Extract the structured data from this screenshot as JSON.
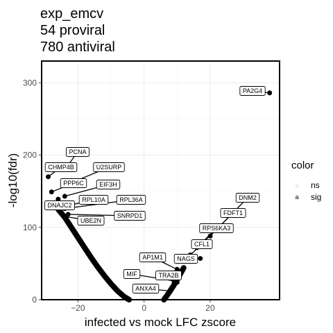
{
  "title_lines": [
    "exp_emcv",
    "54 proviral",
    "780 antiviral"
  ],
  "legend": {
    "title": "color",
    "items": [
      {
        "key": "a",
        "label": "ns",
        "color": "#d9d9d9"
      },
      {
        "key": "a",
        "label": "sig",
        "color": "#000000"
      }
    ]
  },
  "chart_data": {
    "type": "scatter",
    "xlabel": "infected vs mock LFC zscore",
    "ylabel": "-log10(fdr)",
    "xlim": [
      -31,
      41
    ],
    "ylim": [
      0,
      330
    ],
    "xticks": [
      -20,
      0,
      20
    ],
    "yticks": [
      0,
      100,
      200,
      300
    ],
    "grid": true,
    "colors": {
      "sig": "#000000",
      "ns": "#d9d9d9"
    },
    "labeled_points": [
      {
        "label": "PA2G4",
        "x": 38,
        "y": 286
      },
      {
        "label": "PCNA",
        "x": -23,
        "y": 186
      },
      {
        "label": "CHMP4B",
        "x": -29,
        "y": 170
      },
      {
        "label": "U2SURP",
        "x": -24,
        "y": 158
      },
      {
        "label": "PPP6C",
        "x": -28,
        "y": 149
      },
      {
        "label": "EIF3H",
        "x": -24,
        "y": 143
      },
      {
        "label": "DNAJC2",
        "x": -26,
        "y": 139
      },
      {
        "label": "RPL10A",
        "x": -25,
        "y": 128
      },
      {
        "label": "RPL36A",
        "x": -24,
        "y": 126
      },
      {
        "label": "SNRPD1",
        "x": -23,
        "y": 118
      },
      {
        "label": "UBE2N",
        "x": -24,
        "y": 115
      },
      {
        "label": "DNM2",
        "x": 20,
        "y": 88
      },
      {
        "label": "FDFT1",
        "x": 18,
        "y": 80
      },
      {
        "label": "RPS6KA3",
        "x": 16,
        "y": 72
      },
      {
        "label": "CFL1",
        "x": 14,
        "y": 62
      },
      {
        "label": "NAGS",
        "x": 17,
        "y": 57
      },
      {
        "label": "AP1M1",
        "x": 10,
        "y": 42
      },
      {
        "label": "MIF",
        "x": 9,
        "y": 26
      },
      {
        "label": "TRA2B",
        "x": 10,
        "y": 24
      },
      {
        "label": "ANXA4",
        "x": 8,
        "y": 12
      }
    ],
    "curves": [
      {
        "name": "left",
        "x": [
          -26,
          -24,
          -22,
          -20,
          -18,
          -16,
          -14,
          -12,
          -10,
          -8,
          -6,
          -4.5
        ],
        "y": [
          125,
          114,
          100,
          86,
          72,
          58,
          45,
          33,
          22,
          12,
          4,
          0
        ]
      },
      {
        "name": "right",
        "x": [
          6,
          7,
          8,
          9,
          10,
          11,
          12
        ],
        "y": [
          0,
          6,
          13,
          20,
          28,
          36,
          44
        ]
      }
    ]
  }
}
